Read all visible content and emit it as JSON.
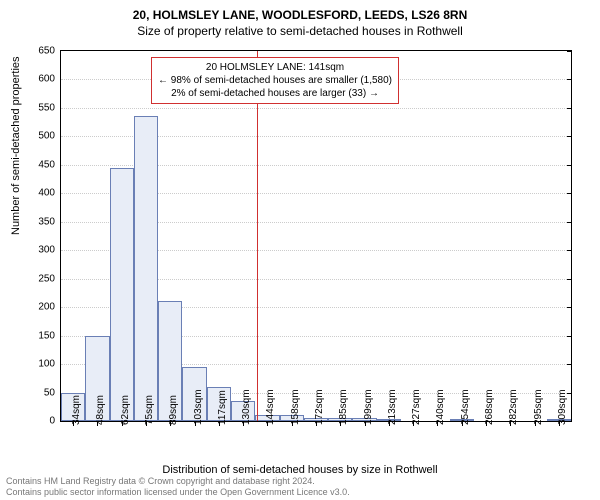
{
  "title": "20, HOLMSLEY LANE, WOODLESFORD, LEEDS, LS26 8RN",
  "subtitle": "Size of property relative to semi-detached houses in Rothwell",
  "ylabel": "Number of semi-detached properties",
  "xlabel": "Distribution of semi-detached houses by size in Rothwell",
  "footer_line1": "Contains HM Land Registry data © Crown copyright and database right 2024.",
  "footer_line2": "Contains public sector information licensed under the Open Government Licence v3.0.",
  "chart": {
    "type": "histogram",
    "background_color": "#ffffff",
    "border_color": "#000000",
    "bar_fill": "#e8edf7",
    "bar_border": "#6a7fb5",
    "grid_color": "#cccccc",
    "marker_color": "#d03030",
    "ylim": [
      0,
      650
    ],
    "ytick_step": 50,
    "x_categories": [
      "34sqm",
      "48sqm",
      "62sqm",
      "75sqm",
      "89sqm",
      "103sqm",
      "117sqm",
      "130sqm",
      "144sqm",
      "158sqm",
      "172sqm",
      "185sqm",
      "199sqm",
      "213sqm",
      "227sqm",
      "240sqm",
      "254sqm",
      "268sqm",
      "282sqm",
      "295sqm",
      "309sqm"
    ],
    "values": [
      50,
      150,
      445,
      535,
      210,
      95,
      60,
      35,
      10,
      10,
      5,
      5,
      5,
      3,
      0,
      0,
      3,
      0,
      0,
      0,
      3
    ],
    "marker_index": 8,
    "annotation": {
      "line1": "20 HOLMSLEY LANE: 141sqm",
      "line2": "← 98% of semi-detached houses are smaller (1,580)",
      "line3": "2% of semi-detached houses are larger (33) →"
    },
    "title_fontsize": 12,
    "label_fontsize": 11,
    "tick_fontsize": 10
  }
}
